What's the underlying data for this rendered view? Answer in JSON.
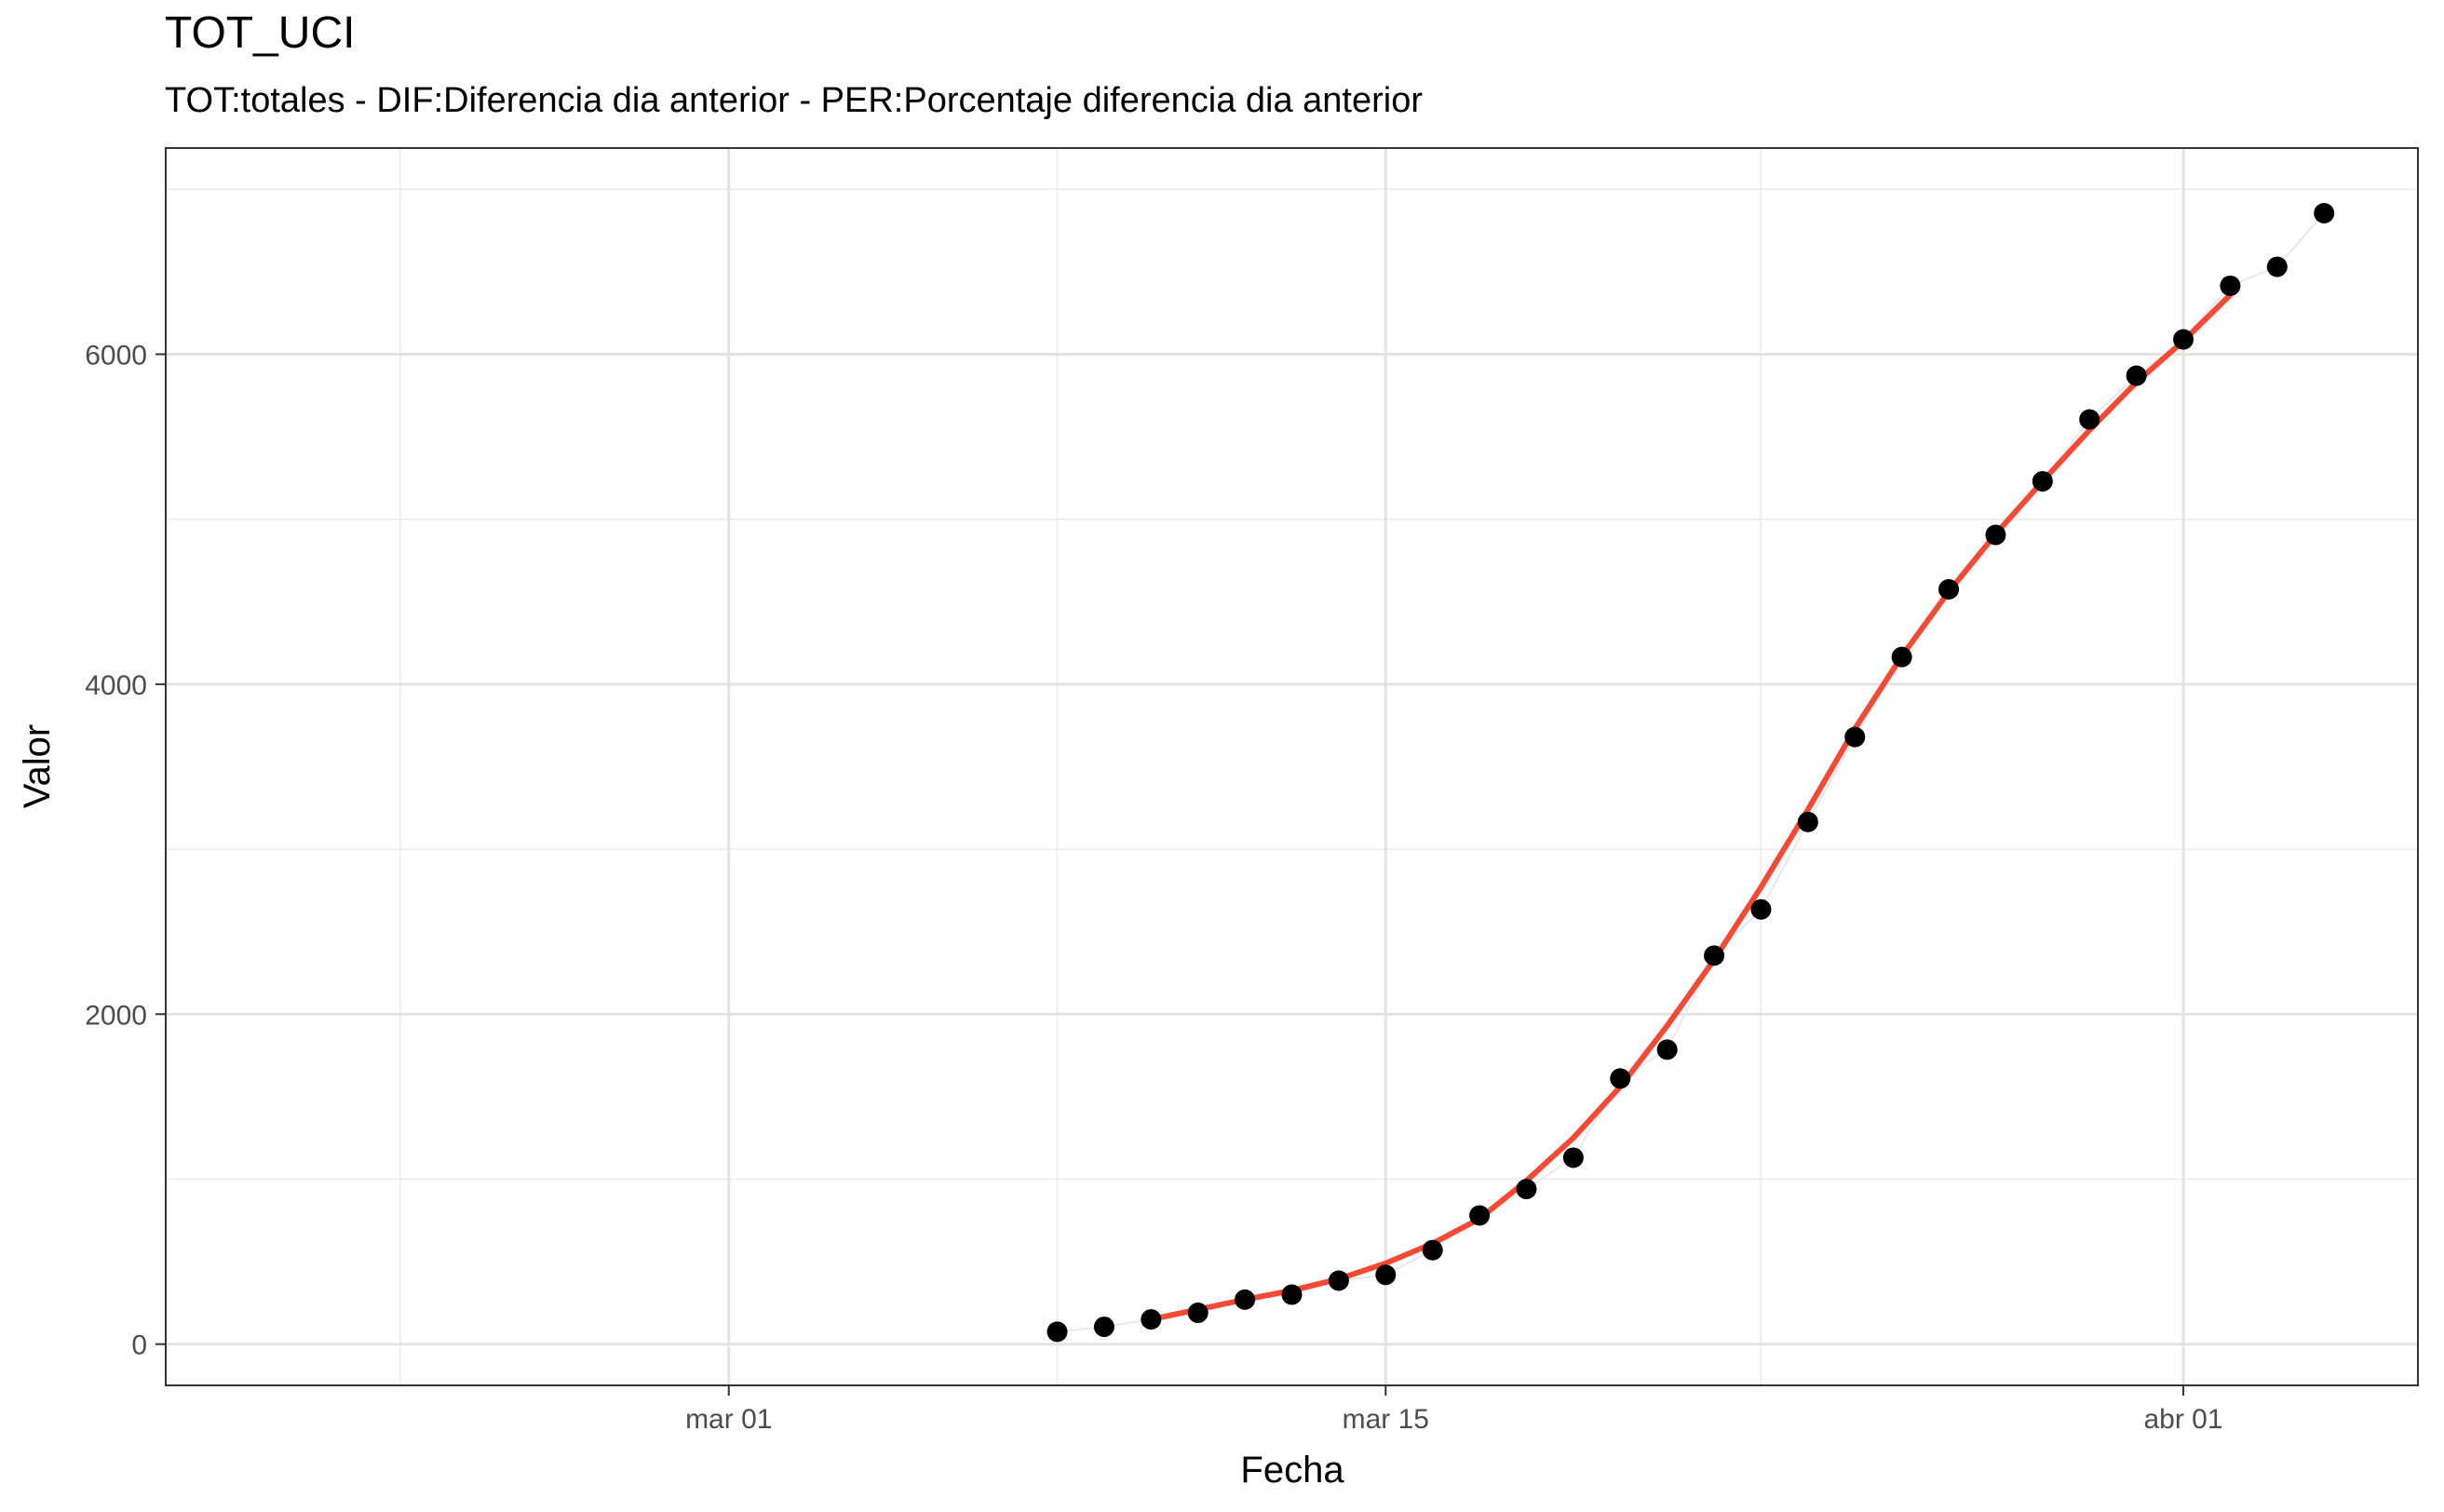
{
  "chart_data": {
    "type": "line",
    "title": "TOT_UCI",
    "subtitle": "TOT:totales - DIF:Diferencia dia anterior - PER:Porcentaje diferencia dia anterior",
    "xlabel": "Fecha",
    "ylabel": "Valor",
    "x_tick_labels": [
      "mar 01",
      "mar 15",
      "abr 01"
    ],
    "y_tick_labels": [
      "0",
      "2000",
      "4000",
      "6000"
    ],
    "y_ticks": [
      0,
      2000,
      4000,
      6000
    ],
    "ylim": [
      -250,
      7250
    ],
    "xlim": [
      "2020-02-18",
      "2020-04-06"
    ],
    "grid": true,
    "series": [
      {
        "type": "scatter",
        "color": "#000000",
        "x": [
          "2020-03-08",
          "2020-03-09",
          "2020-03-10",
          "2020-03-11",
          "2020-03-12",
          "2020-03-13",
          "2020-03-14",
          "2020-03-15",
          "2020-03-16",
          "2020-03-17",
          "2020-03-18",
          "2020-03-19",
          "2020-03-20",
          "2020-03-21",
          "2020-03-22",
          "2020-03-23",
          "2020-03-24",
          "2020-03-25",
          "2020-03-26",
          "2020-03-27",
          "2020-03-28",
          "2020-03-29",
          "2020-03-30",
          "2020-03-31",
          "2020-04-01",
          "2020-04-02",
          "2020-04-03",
          "2020-04-04"
        ],
        "values": [
          75,
          105,
          150,
          190,
          270,
          300,
          385,
          420,
          570,
          780,
          940,
          1130,
          1610,
          1785,
          2355,
          2635,
          3165,
          3680,
          4165,
          4575,
          4905,
          5230,
          5605,
          5870,
          6090,
          6415,
          6530,
          6855
        ]
      },
      {
        "type": "line",
        "color": "#f44a35",
        "x": [
          "2020-03-10",
          "2020-03-11",
          "2020-03-12",
          "2020-03-13",
          "2020-03-14",
          "2020-03-15",
          "2020-03-16",
          "2020-03-17",
          "2020-03-18",
          "2020-03-19",
          "2020-03-20",
          "2020-03-21",
          "2020-03-22",
          "2020-03-23",
          "2020-03-24",
          "2020-03-25",
          "2020-03-26",
          "2020-03-27",
          "2020-03-28",
          "2020-03-29",
          "2020-03-30",
          "2020-03-31",
          "2020-04-01",
          "2020-04-02"
        ],
        "values": [
          150,
          210,
          270,
          325,
          395,
          490,
          610,
          760,
          990,
          1250,
          1560,
          1930,
          2330,
          2770,
          3240,
          3730,
          4170,
          4560,
          4910,
          5230,
          5540,
          5830,
          6080,
          6360
        ]
      }
    ]
  }
}
